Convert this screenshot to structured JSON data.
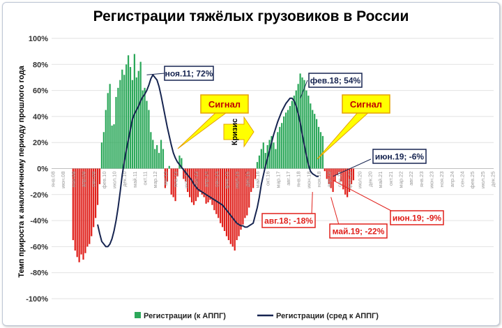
{
  "chart_data": {
    "type": "bar",
    "title": "Регистрации тяжёлых грузовиков в России",
    "ylabel": "Темп прироста к аналогичному периоду прошлого года",
    "ylim": [
      -100,
      100
    ],
    "y_ticks": [
      "100%",
      "80%",
      "60%",
      "40%",
      "20%",
      "0%",
      "-20%",
      "-40%",
      "-60%",
      "-80%",
      "-100%"
    ],
    "x_tick_labels": [
      "янв.08",
      "июн.08",
      "ноя.08",
      "апр.09",
      "сен.09",
      "фев.10",
      "июл.10",
      "дек.10",
      "май.11",
      "окт.11",
      "мар.12",
      "авг.12",
      "янв.13",
      "июн.13",
      "ноя.13",
      "апр.14",
      "сен.14",
      "фев.15",
      "июл.15",
      "дек.15",
      "май.16",
      "окт.16",
      "мар.17",
      "авг.17",
      "янв.18",
      "июн.18",
      "ноя.18",
      "апр.19",
      "сен.19",
      "фев.20",
      "июл.20",
      "дек.20",
      "май.21",
      "окт.21",
      "мар.22",
      "авг.22",
      "янв.23",
      "июн.23",
      "ноя.23",
      "апр.24",
      "сен.24",
      "фев.25",
      "июл.25",
      "дек.25"
    ],
    "grid": true,
    "legend_position": "bottom",
    "series": [
      {
        "name": "Регистрации (к АППГ)",
        "kind": "bar",
        "color_positive": "#2ca85a",
        "color_negative": "#e0201b",
        "values": [
          -55,
          -63,
          -68,
          -72,
          -66,
          -70,
          -65,
          -60,
          -58,
          -52,
          -45,
          -38,
          -28,
          -12,
          20,
          28,
          45,
          58,
          65,
          33,
          34,
          55,
          62,
          68,
          76,
          72,
          80,
          87,
          78,
          68,
          88,
          70,
          75,
          82,
          60,
          62,
          52,
          45,
          28,
          22,
          15,
          18,
          12,
          22,
          15,
          -15,
          -10,
          2,
          -20,
          -22,
          -25,
          -6,
          10,
          8,
          -8,
          -10,
          -18,
          -22,
          -26,
          -28,
          -25,
          -22,
          -18,
          -20,
          -22,
          -27,
          -26,
          -24,
          -28,
          -32,
          -35,
          -38,
          -42,
          -45,
          -48,
          -52,
          -55,
          -58,
          -60,
          -63,
          -55,
          -52,
          -47,
          -43,
          -38,
          -36,
          -30,
          -18,
          -15,
          -8,
          5,
          10,
          15,
          20,
          12,
          18,
          22,
          25,
          20,
          15,
          28,
          32,
          35,
          40,
          43,
          45,
          48,
          52,
          56,
          60,
          65,
          73,
          70,
          68,
          60,
          56,
          50,
          45,
          42,
          38,
          32,
          28,
          25,
          -2,
          -8,
          -12,
          -15,
          -18,
          -10,
          -5,
          -3,
          -10,
          -16,
          -20,
          -22,
          -18,
          -12,
          -9
        ],
        "start": "2008-11"
      },
      {
        "name": "Регистрации (сред к АППГ)",
        "kind": "line",
        "color": "#162450",
        "values": [
          -43,
          -50,
          -56,
          -58,
          -60,
          -60,
          -58,
          -54,
          -48,
          -40,
          -30,
          -18,
          -5,
          5,
          14,
          22,
          30,
          38,
          42,
          45,
          48,
          52,
          55,
          57,
          60,
          64,
          69,
          72,
          70,
          68,
          63,
          56,
          48,
          40,
          32,
          25,
          18,
          12,
          8,
          5,
          3,
          1,
          -1,
          -3,
          -5,
          -7,
          -9,
          -12,
          -14,
          -16,
          -17,
          -18,
          -19,
          -20,
          -21,
          -22,
          -23,
          -24,
          -25,
          -26,
          -27,
          -28,
          -30,
          -32,
          -34,
          -36,
          -38,
          -40,
          -42,
          -43,
          -44,
          -44,
          -45,
          -45,
          -44,
          -43,
          -42,
          -36,
          -30,
          -22,
          -12,
          -5,
          2,
          8,
          14,
          20,
          26,
          31,
          36,
          40,
          44,
          47,
          50,
          52,
          54,
          54,
          52,
          48,
          42,
          35,
          26,
          18,
          10,
          3,
          -2,
          -4,
          -5,
          -6,
          -6
        ],
        "start": "2009-11"
      }
    ],
    "annotations": [
      {
        "text": "ноя.11; 72%",
        "color": "#162450"
      },
      {
        "text": "фев.18; 54%",
        "color": "#162450"
      },
      {
        "text": "июн.19; -6%",
        "color": "#162450"
      },
      {
        "text": "авг.18; -18%",
        "color": "#e0201b"
      },
      {
        "text": "май.19; -22%",
        "color": "#e0201b"
      },
      {
        "text": "июн.19; -9%",
        "color": "#e0201b"
      },
      {
        "text": "Сигнал",
        "color": "#c00000"
      },
      {
        "text": "Сигнал",
        "color": "#c00000"
      },
      {
        "text": "Кризис",
        "color": "#000000"
      }
    ]
  }
}
